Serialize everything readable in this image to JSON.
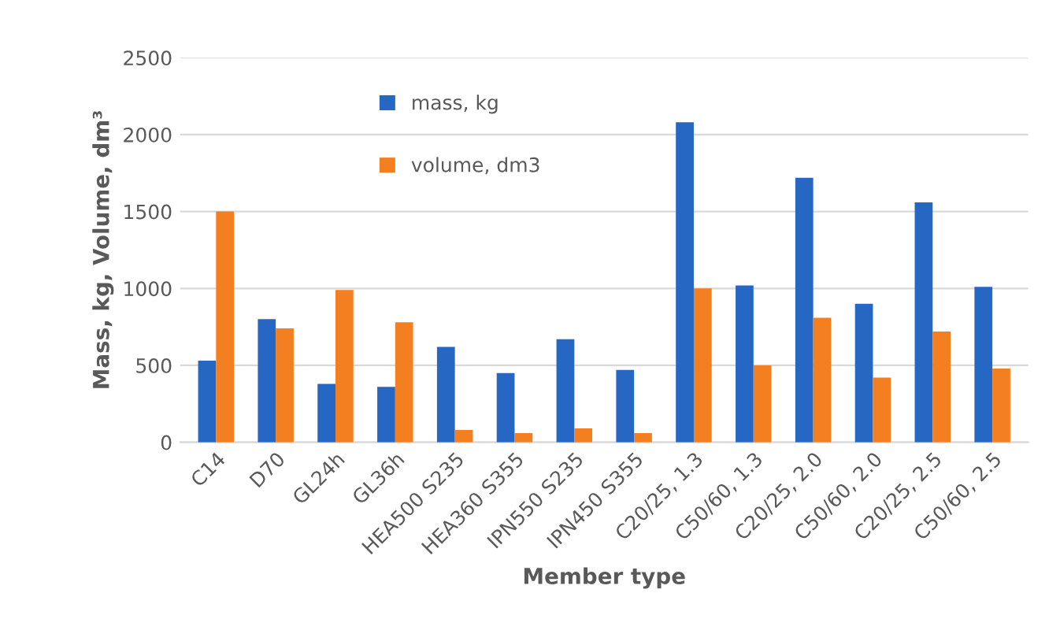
{
  "chart_data": {
    "type": "bar",
    "xlabel": "Member type",
    "ylabel": "Mass, kg, Volume, dm³",
    "categories": [
      "C14",
      "D70",
      "GL24h",
      "GL36h",
      "HEA500 S235",
      "HEA360 S355",
      "IPN550 S235",
      "IPN450 S355",
      "C20/25, 1.3",
      "C50/60, 1.3",
      "C20/25, 2.0",
      "C50/60, 2.0",
      "C20/25, 2.5",
      "C50/60, 2.5"
    ],
    "series": [
      {
        "name": "mass, kg",
        "color": "#2767c4",
        "values": [
          530,
          800,
          380,
          360,
          620,
          450,
          670,
          470,
          2080,
          1020,
          1720,
          900,
          1560,
          1010
        ]
      },
      {
        "name": "volume, dm3",
        "color": "#f47f20",
        "values": [
          1500,
          740,
          990,
          780,
          80,
          60,
          90,
          60,
          1000,
          500,
          810,
          420,
          720,
          480
        ]
      }
    ],
    "ylim": [
      0,
      2500
    ],
    "yticks": [
      0,
      500,
      1000,
      1500,
      2000,
      2500
    ],
    "grid": "y",
    "legend": "top"
  }
}
